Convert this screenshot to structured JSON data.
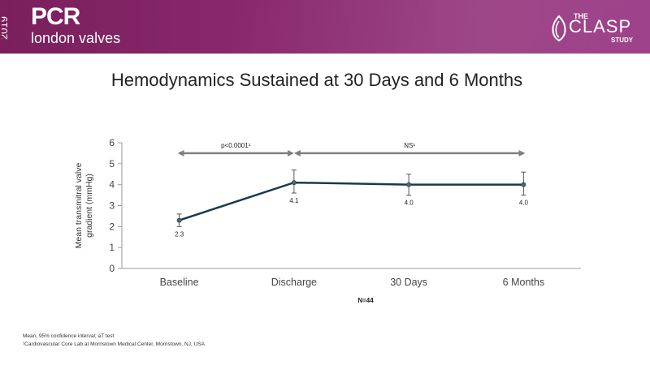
{
  "header": {
    "year": "2019",
    "brand": "PCR",
    "subtitle": "london valves",
    "study_the": "THE",
    "study_name": "CLASP",
    "study_word": "STUDY",
    "accent_color": "#8a2a6e"
  },
  "slide": {
    "title": "Hemodynamics Sustained at 30 Days and 6 Months",
    "n_label": "N=44",
    "footnote1": "Mean, 95% confidence interval; aT test",
    "footnote2": "¹Cardiovascular Core Lab at Morristown Medical Center, Morristown, NJ, USA"
  },
  "chart_data": {
    "type": "line",
    "title": "Hemodynamics Sustained at 30 Days and 6 Months",
    "xlabel": "",
    "ylabel": "Mean transmitral valve gradient (mmHg)",
    "ylabel_lines": [
      "Mean transmitral valve",
      "gradient (mmHg)"
    ],
    "categories": [
      "Baseline",
      "Discharge",
      "30 Days",
      "6 Months"
    ],
    "series": [
      {
        "name": "Mean transmitral valve gradient",
        "values": [
          2.3,
          4.1,
          4.0,
          4.0
        ],
        "labels": [
          "2.3",
          "4.1",
          "4.0",
          "4.0"
        ],
        "ci_low": [
          2.0,
          3.6,
          3.5,
          3.5
        ],
        "ci_high": [
          2.6,
          4.7,
          4.5,
          4.6
        ]
      }
    ],
    "ylim": [
      0,
      6
    ],
    "yticks": [
      0,
      1,
      2,
      3,
      4,
      5,
      6
    ],
    "annotations": [
      {
        "text": "p<0.0001¹",
        "from": "Baseline",
        "to": "Discharge",
        "y": 5.5
      },
      {
        "text": "NS¹",
        "from": "Discharge",
        "to": "6 Months",
        "y": 5.5
      }
    ],
    "line_color": "#173a4e",
    "arrow_color": "#7f7f7f"
  }
}
